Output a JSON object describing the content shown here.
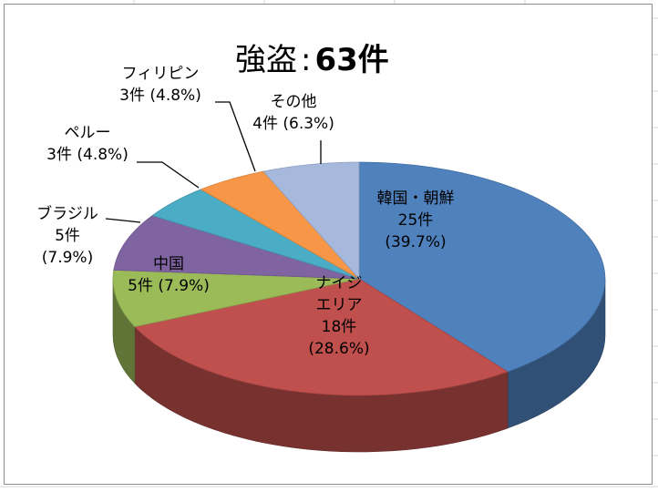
{
  "chart_data": {
    "type": "pie",
    "style": "3d",
    "title": "強盗",
    "title_sep": ":",
    "title_count": "63件",
    "total": 63,
    "slices": [
      {
        "name": "韓国・朝鮮",
        "count": 25,
        "count_label": "25件",
        "percent_label": "(39.7%)",
        "color": "#4f81bd"
      },
      {
        "name": "ナイジェリア",
        "name_lines": [
          "ナイジ",
          "エリア"
        ],
        "count": 18,
        "count_label": "18件",
        "percent_label": "(28.6%)",
        "color": "#c0504d"
      },
      {
        "name": "中国",
        "count": 5,
        "count_label": "5件",
        "percent_label": "(7.9%)",
        "color": "#9bbb59"
      },
      {
        "name": "ブラジル",
        "count": 5,
        "count_label": "5件",
        "percent_label": "(7.9%)",
        "color": "#8064a2"
      },
      {
        "name": "ペルー",
        "count": 3,
        "count_label": "3件",
        "percent_label": "(4.8%)",
        "color": "#4bacc6"
      },
      {
        "name": "フィリピン",
        "count": 3,
        "count_label": "3件",
        "percent_label": "(4.8%)",
        "color": "#f79646"
      },
      {
        "name": "その他",
        "count": 4,
        "count_label": "4件",
        "percent_label": "(6.3%)",
        "color": "#a6b9dd"
      }
    ]
  }
}
